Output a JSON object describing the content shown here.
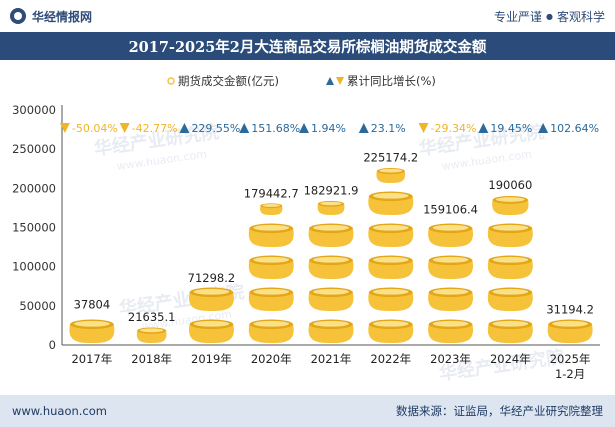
{
  "header": {
    "brand": "华经情报网",
    "slogan_left": "专业严谨",
    "slogan_sep": "●",
    "slogan_right": "客观科学"
  },
  "watermark": "华经产业研究院",
  "watermark_url": "www.huaon.com",
  "footer": {
    "url": "www.huaon.com",
    "source": "数据来源：证监局，华经产业研究院整理"
  },
  "colors": {
    "title_bg": "#2b4b7a",
    "coin": "#f5c23a",
    "coin_dark": "#e3a614",
    "up": "#2b6a9a",
    "down": "#f0b429",
    "axis": "#555555",
    "footer_bg": "#dde6f0"
  },
  "chart_data": {
    "type": "bar",
    "title": "2017-2025年2月大连商品交易所棕榈油期货成交金额",
    "legend": [
      "期货成交金额(亿元)",
      "累计同比增长(%)"
    ],
    "categories": [
      "2017年",
      "2018年",
      "2019年",
      "2020年",
      "2021年",
      "2022年",
      "2023年",
      "2024年",
      "2025年\n1-2月"
    ],
    "values": [
      37804,
      21635.1,
      71298.2,
      179442.7,
      182921.9,
      225174.2,
      159106.4,
      190060,
      31194.2
    ],
    "value_labels": [
      "37804",
      "21635.1",
      "71298.2",
      "179442.7",
      "182921.9",
      "225174.2",
      "159106.4",
      "190060",
      "31194.2"
    ],
    "growth": [
      -50.04,
      -42.77,
      229.55,
      151.68,
      1.94,
      23.1,
      -29.34,
      19.45,
      102.64
    ],
    "growth_labels": [
      "-50.04%",
      "-42.77%",
      "229.55%",
      "151.68%",
      "1.94%",
      "23.1%",
      "-29.34%",
      "19.45%",
      "102.64%"
    ],
    "ylim": [
      0,
      300000
    ],
    "yticks": [
      0,
      50000,
      100000,
      150000,
      200000,
      250000,
      300000
    ],
    "ytick_labels": [
      "0",
      "50000",
      "100000",
      "150000",
      "200000",
      "250000",
      "300000"
    ],
    "xlabel": "",
    "ylabel": ""
  }
}
